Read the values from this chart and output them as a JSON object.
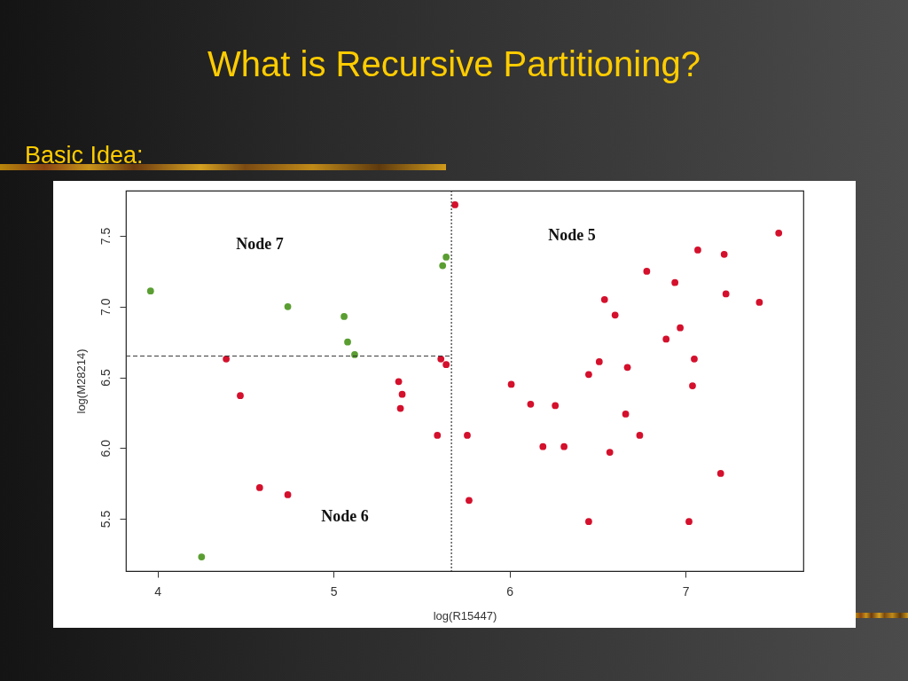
{
  "chart_data": {
    "type": "scatter",
    "title": "What is Recursive Partitioning?",
    "subtitle": "Basic Idea:",
    "xlabel": "log(R15447)",
    "ylabel": "log(M28214)",
    "xlim": [
      3.82,
      7.67
    ],
    "ylim": [
      5.13,
      7.82
    ],
    "xticks": [
      4,
      5,
      6,
      7
    ],
    "yticks": [
      5.5,
      {
        "value": 6,
        "label": "6.0"
      },
      6.5,
      {
        "value": 7,
        "label": "7.0"
      },
      7.5
    ],
    "marker": "circle",
    "series": [
      {
        "color": "#5a9e32",
        "x": [
          3.96,
          4.74,
          5.06,
          5.08,
          5.12,
          5.62,
          5.64,
          4.25
        ],
        "values": [
          7.11,
          7.0,
          6.93,
          6.75,
          6.66,
          7.29,
          7.35,
          5.23
        ]
      },
      {
        "color": "#d4102c",
        "x": [
          5.69,
          4.39,
          5.61,
          5.64,
          5.37,
          4.47,
          5.39,
          5.38,
          5.59,
          4.58,
          4.74,
          7.53,
          7.07,
          7.22,
          6.78,
          6.94,
          7.23,
          7.42,
          6.54,
          6.6,
          6.97,
          6.89,
          6.51,
          7.05,
          6.67,
          6.45,
          6.01,
          7.04,
          6.12,
          6.26,
          6.66,
          5.76,
          6.74,
          6.19,
          6.31,
          6.57,
          7.2,
          5.77,
          6.45,
          7.02
        ],
        "values": [
          7.72,
          6.63,
          6.63,
          6.59,
          6.47,
          6.37,
          6.38,
          6.28,
          6.09,
          5.72,
          5.67,
          7.52,
          7.4,
          7.37,
          7.25,
          7.17,
          7.09,
          7.03,
          7.05,
          6.94,
          6.85,
          6.77,
          6.61,
          6.63,
          6.57,
          6.52,
          6.45,
          6.44,
          6.31,
          6.3,
          6.24,
          6.09,
          6.09,
          6.01,
          6.01,
          5.97,
          5.82,
          5.63,
          5.48,
          5.48
        ]
      },
      {
        "type": "line",
        "color": "#333333",
        "line_style": "dashed",
        "marker": "none",
        "x": [
          3.82,
          5.67
        ],
        "values": [
          6.65,
          6.65
        ]
      }
    ],
    "ref_lines": [
      {
        "axis": "x",
        "value": 5.67,
        "color": "#333333",
        "line_style": "dotted"
      }
    ],
    "annotations": [
      "Node 7",
      "Node 6",
      "Node 5"
    ]
  }
}
